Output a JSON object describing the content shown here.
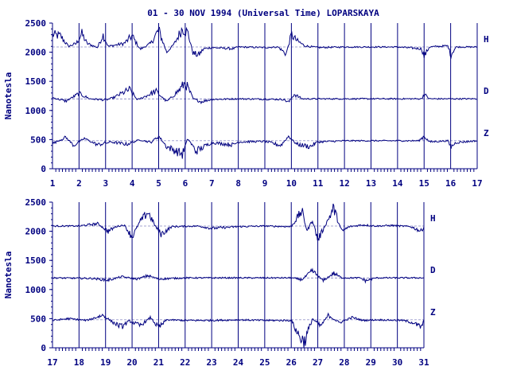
{
  "title": "01 - 30 NOV 1994 (Universal Time) LOPARSKAYA",
  "colors": {
    "ink": "#000080",
    "background": "#ffffff"
  },
  "chart_data": [
    {
      "type": "line",
      "ylabel": "Nanotesla",
      "xlim": [
        1,
        17
      ],
      "ylim": [
        0,
        2500
      ],
      "x_ticks": [
        "1",
        "2",
        "3",
        "4",
        "5",
        "6",
        "7",
        "8",
        "9",
        "10",
        "11",
        "12",
        "13",
        "14",
        "15",
        "16",
        "17"
      ],
      "y_ticks": [
        "0",
        "500",
        "1000",
        "1500",
        "2000",
        "2500"
      ],
      "grid": "vertical lines at each day",
      "series": [
        {
          "name": "H",
          "baseline": 2090,
          "profile": [
            [
              1,
              2300
            ],
            [
              1.3,
              2280
            ],
            [
              1.6,
              2100
            ],
            [
              1.9,
              2150
            ],
            [
              2.1,
              2320
            ],
            [
              2.3,
              2150
            ],
            [
              2.7,
              2080
            ],
            [
              2.9,
              2300
            ],
            [
              3.1,
              2100
            ],
            [
              3.7,
              2150
            ],
            [
              4.0,
              2280
            ],
            [
              4.3,
              2050
            ],
            [
              4.7,
              2150
            ],
            [
              5.0,
              2380
            ],
            [
              5.3,
              2000
            ],
            [
              5.6,
              2150
            ],
            [
              5.9,
              2420
            ],
            [
              6.1,
              2330
            ],
            [
              6.3,
              1980
            ],
            [
              6.5,
              1950
            ],
            [
              6.7,
              2060
            ],
            [
              7,
              2080
            ],
            [
              7.8,
              2060
            ],
            [
              8,
              2090
            ],
            [
              9,
              2080
            ],
            [
              9.5,
              2090
            ],
            [
              9.8,
              1970
            ],
            [
              10,
              2300
            ],
            [
              10.2,
              2200
            ],
            [
              10.5,
              2110
            ],
            [
              11,
              2080
            ],
            [
              12,
              2090
            ],
            [
              14,
              2090
            ],
            [
              14.9,
              2060
            ],
            [
              15.0,
              1930
            ],
            [
              15.2,
              2090
            ],
            [
              15.9,
              2110
            ],
            [
              16.0,
              1950
            ],
            [
              16.2,
              2090
            ],
            [
              17,
              2090
            ]
          ]
        },
        {
          "name": "D",
          "baseline": 1200,
          "profile": [
            [
              1,
              1220
            ],
            [
              1.5,
              1160
            ],
            [
              2.0,
              1290
            ],
            [
              2.4,
              1200
            ],
            [
              3.0,
              1180
            ],
            [
              3.3,
              1220
            ],
            [
              3.9,
              1360
            ],
            [
              4.2,
              1180
            ],
            [
              4.9,
              1330
            ],
            [
              5.3,
              1150
            ],
            [
              5.8,
              1360
            ],
            [
              6.0,
              1480
            ],
            [
              6.3,
              1200
            ],
            [
              6.6,
              1150
            ],
            [
              7,
              1190
            ],
            [
              8,
              1200
            ],
            [
              9.7,
              1190
            ],
            [
              9.9,
              1140
            ],
            [
              10.1,
              1280
            ],
            [
              10.4,
              1200
            ],
            [
              11,
              1200
            ],
            [
              14.9,
              1200
            ],
            [
              15.0,
              1280
            ],
            [
              15.2,
              1200
            ],
            [
              17,
              1200
            ]
          ]
        },
        {
          "name": "Z",
          "baseline": 480,
          "profile": [
            [
              1,
              430
            ],
            [
              1.5,
              540
            ],
            [
              1.8,
              400
            ],
            [
              2.2,
              520
            ],
            [
              2.7,
              410
            ],
            [
              3.2,
              460
            ],
            [
              3.8,
              420
            ],
            [
              4.3,
              500
            ],
            [
              4.7,
              450
            ],
            [
              5.0,
              560
            ],
            [
              5.3,
              380
            ],
            [
              5.9,
              250
            ],
            [
              6.1,
              520
            ],
            [
              6.4,
              300
            ],
            [
              6.8,
              400
            ],
            [
              7,
              450
            ],
            [
              7.8,
              410
            ],
            [
              8,
              460
            ],
            [
              9,
              470
            ],
            [
              9.6,
              400
            ],
            [
              9.9,
              560
            ],
            [
              10.2,
              420
            ],
            [
              10.7,
              380
            ],
            [
              11,
              460
            ],
            [
              12,
              480
            ],
            [
              14.8,
              480
            ],
            [
              15.0,
              560
            ],
            [
              15.2,
              460
            ],
            [
              15.9,
              480
            ],
            [
              16.0,
              370
            ],
            [
              16.2,
              450
            ],
            [
              17,
              480
            ]
          ]
        }
      ]
    },
    {
      "type": "line",
      "ylabel": "Nanotesla",
      "xlim": [
        17,
        31
      ],
      "ylim": [
        0,
        2500
      ],
      "x_ticks": [
        "17",
        "18",
        "19",
        "20",
        "21",
        "22",
        "23",
        "24",
        "25",
        "26",
        "27",
        "28",
        "29",
        "30",
        "31"
      ],
      "y_ticks": [
        "0",
        "500",
        "1000",
        "1500",
        "2000",
        "2500"
      ],
      "grid": "vertical lines at each day",
      "series": [
        {
          "name": "H",
          "baseline": 2090,
          "profile": [
            [
              17,
              2090
            ],
            [
              18,
              2090
            ],
            [
              18.7,
              2130
            ],
            [
              19.1,
              2000
            ],
            [
              19.4,
              2080
            ],
            [
              19.7,
              2110
            ],
            [
              20.0,
              1900
            ],
            [
              20.3,
              2170
            ],
            [
              20.6,
              2330
            ],
            [
              20.9,
              2070
            ],
            [
              21.1,
              1950
            ],
            [
              21.5,
              2080
            ],
            [
              22.5,
              2090
            ],
            [
              23,
              2050
            ],
            [
              24,
              2080
            ],
            [
              25,
              2090
            ],
            [
              26.0,
              2080
            ],
            [
              26.4,
              2350
            ],
            [
              26.6,
              2000
            ],
            [
              26.8,
              2200
            ],
            [
              27.0,
              1850
            ],
            [
              27.3,
              2120
            ],
            [
              27.6,
              2400
            ],
            [
              27.9,
              2000
            ],
            [
              28.2,
              2080
            ],
            [
              28.7,
              2110
            ],
            [
              29.2,
              2090
            ],
            [
              29.8,
              2100
            ],
            [
              30.5,
              2080
            ],
            [
              30.9,
              2000
            ],
            [
              31,
              2080
            ]
          ]
        },
        {
          "name": "D",
          "baseline": 1200,
          "profile": [
            [
              17,
              1200
            ],
            [
              18.5,
              1190
            ],
            [
              19.1,
              1160
            ],
            [
              19.6,
              1220
            ],
            [
              20.2,
              1180
            ],
            [
              20.6,
              1240
            ],
            [
              21.0,
              1180
            ],
            [
              22,
              1200
            ],
            [
              24,
              1200
            ],
            [
              26.0,
              1200
            ],
            [
              26.4,
              1170
            ],
            [
              26.8,
              1320
            ],
            [
              27.2,
              1150
            ],
            [
              27.6,
              1280
            ],
            [
              27.9,
              1200
            ],
            [
              28.6,
              1200
            ],
            [
              28.8,
              1150
            ],
            [
              29.2,
              1200
            ],
            [
              31,
              1200
            ]
          ]
        },
        {
          "name": "Z",
          "baseline": 480,
          "profile": [
            [
              17,
              470
            ],
            [
              17.6,
              500
            ],
            [
              18.3,
              470
            ],
            [
              18.9,
              560
            ],
            [
              19.3,
              430
            ],
            [
              19.6,
              360
            ],
            [
              19.9,
              460
            ],
            [
              20.3,
              380
            ],
            [
              20.7,
              520
            ],
            [
              21.0,
              340
            ],
            [
              21.3,
              480
            ],
            [
              22,
              470
            ],
            [
              23,
              470
            ],
            [
              24,
              480
            ],
            [
              25,
              470
            ],
            [
              26.0,
              470
            ],
            [
              26.3,
              200
            ],
            [
              26.5,
              100
            ],
            [
              26.8,
              500
            ],
            [
              27.1,
              370
            ],
            [
              27.4,
              560
            ],
            [
              27.8,
              430
            ],
            [
              28.3,
              520
            ],
            [
              28.7,
              470
            ],
            [
              29.2,
              480
            ],
            [
              30.2,
              470
            ],
            [
              30.6,
              430
            ],
            [
              30.9,
              350
            ],
            [
              31,
              470
            ]
          ]
        }
      ]
    }
  ]
}
